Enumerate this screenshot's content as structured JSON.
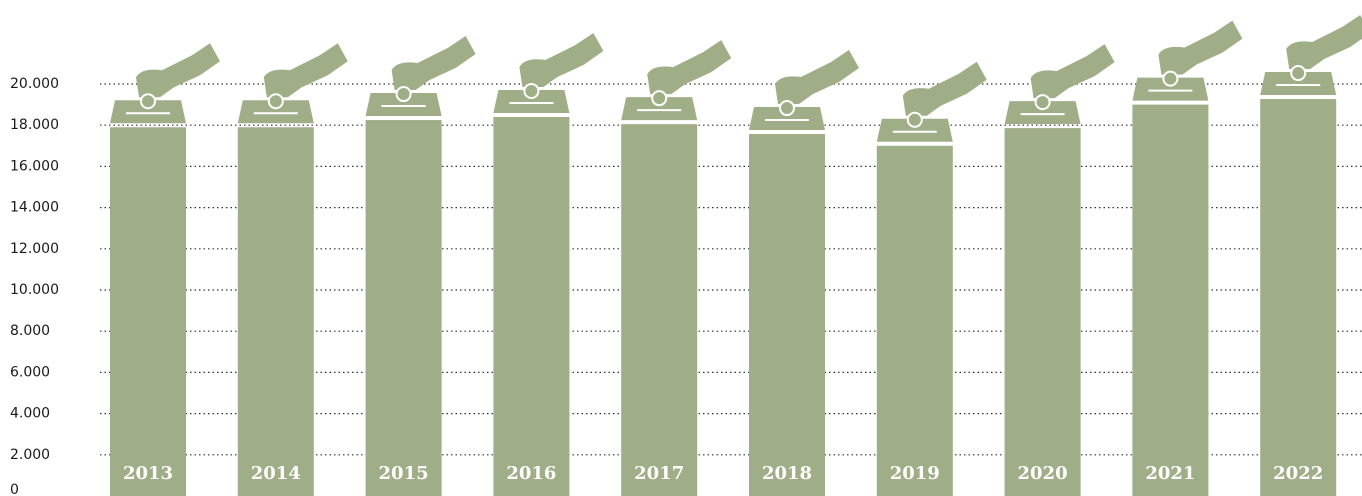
{
  "chart_data": {
    "type": "bar",
    "categories": [
      "2013",
      "2014",
      "2015",
      "2016",
      "2017",
      "2018",
      "2019",
      "2020",
      "2021",
      "2022"
    ],
    "values": [
      17900,
      17900,
      18250,
      18400,
      18050,
      17570,
      17000,
      17860,
      19000,
      19270
    ],
    "color": "#a0ae88",
    "ylim": [
      0,
      20000
    ],
    "yticks": [
      0,
      {
        "value": 2000,
        "label": "2.000"
      },
      {
        "value": 4000,
        "label": "4.000"
      },
      {
        "value": 6000,
        "label": "6.000"
      },
      {
        "value": 8000,
        "label": "8.000"
      },
      {
        "value": 10000,
        "label": "10.000"
      },
      {
        "value": 12000,
        "label": "12.000"
      },
      {
        "value": 14000,
        "label": "14.000"
      },
      {
        "value": 16000,
        "label": "16.000"
      },
      {
        "value": 18000,
        "label": "18.000"
      },
      {
        "value": 20000,
        "label": "20.000"
      }
    ],
    "grid": true
  }
}
